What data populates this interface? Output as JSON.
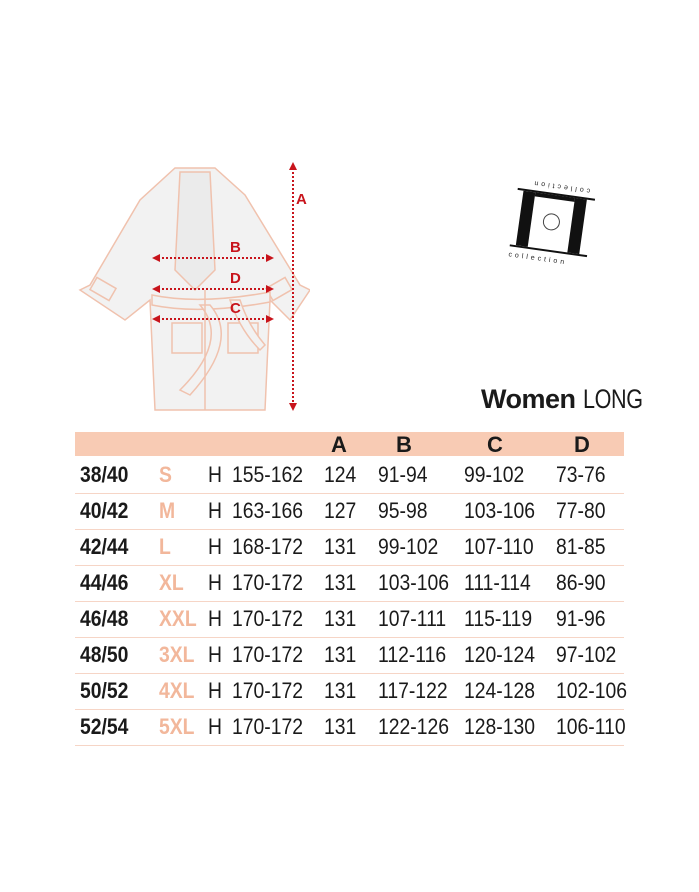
{
  "diagram": {
    "labels": {
      "A": "A",
      "B": "B",
      "C": "C",
      "D": "D"
    },
    "arrow_color": "#c8141c",
    "outline_color": "#f0c2ae"
  },
  "logo": {
    "text_top": "collection",
    "text_bottom": "collection"
  },
  "title": {
    "bold": "Women",
    "light": "LONG"
  },
  "table": {
    "header_color": "#f8cbb4",
    "size_color": "#f2b79b",
    "columns": [
      "A",
      "B",
      "C",
      "D"
    ],
    "rows": [
      {
        "eu": "38/40",
        "size": "S",
        "h": "H",
        "height": "155-162",
        "A": "124",
        "B": "91-94",
        "C": "99-102",
        "D": "73-76"
      },
      {
        "eu": "40/42",
        "size": "M",
        "h": "H",
        "height": "163-166",
        "A": "127",
        "B": "95-98",
        "C": "103-106",
        "D": "77-80"
      },
      {
        "eu": "42/44",
        "size": "L",
        "h": "H",
        "height": "168-172",
        "A": "131",
        "B": "99-102",
        "C": "107-110",
        "D": "81-85"
      },
      {
        "eu": "44/46",
        "size": "XL",
        "h": "H",
        "height": "170-172",
        "A": "131",
        "B": "103-106",
        "C": "111-114",
        "D": "86-90"
      },
      {
        "eu": "46/48",
        "size": "XXL",
        "h": "H",
        "height": "170-172",
        "A": "131",
        "B": "107-111",
        "C": "115-119",
        "D": "91-96"
      },
      {
        "eu": "48/50",
        "size": "3XL",
        "h": "H",
        "height": "170-172",
        "A": "131",
        "B": "112-116",
        "C": "120-124",
        "D": "97-102"
      },
      {
        "eu": "50/52",
        "size": "4XL",
        "h": "H",
        "height": "170-172",
        "A": "131",
        "B": "117-122",
        "C": "124-128",
        "D": "102-106"
      },
      {
        "eu": "52/54",
        "size": "5XL",
        "h": "H",
        "height": "170-172",
        "A": "131",
        "B": "122-126",
        "C": "128-130",
        "D": "106-110"
      }
    ]
  }
}
